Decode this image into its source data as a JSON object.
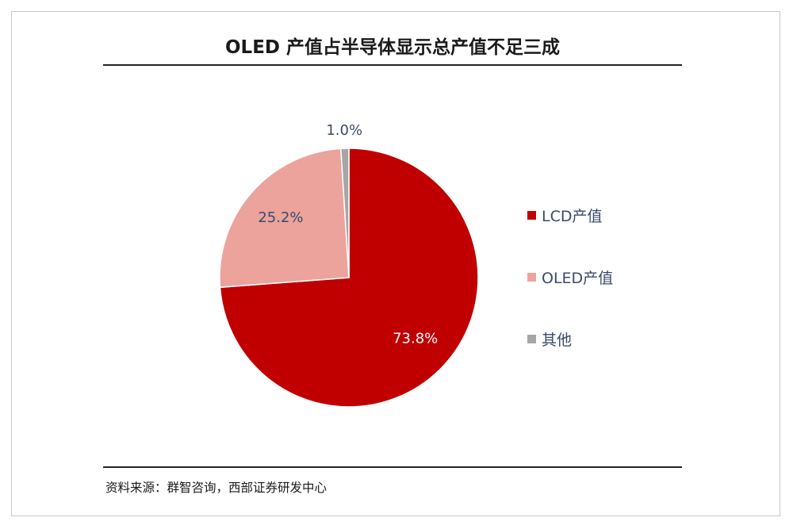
{
  "chart_data": {
    "type": "pie",
    "title": "OLED 产值占半导体显示总产值不足三成",
    "slices": [
      {
        "name": "LCD产值",
        "value": 73.8,
        "label": "73.8%",
        "color": "#c00000"
      },
      {
        "name": "OLED产值",
        "value": 25.2,
        "label": "25.2%",
        "color": "#eba39c"
      },
      {
        "name": "其他",
        "value": 1.0,
        "label": "1.0%",
        "color": "#a6a6a6"
      }
    ],
    "legend_position": "right",
    "start_angle": "12 o'clock",
    "direction": "clockwise"
  },
  "source": "资料来源：群智咨询，西部证券研发中心",
  "colors": {
    "label_on_dark": "#ffffff",
    "label_on_light": "#3a4a6a"
  }
}
